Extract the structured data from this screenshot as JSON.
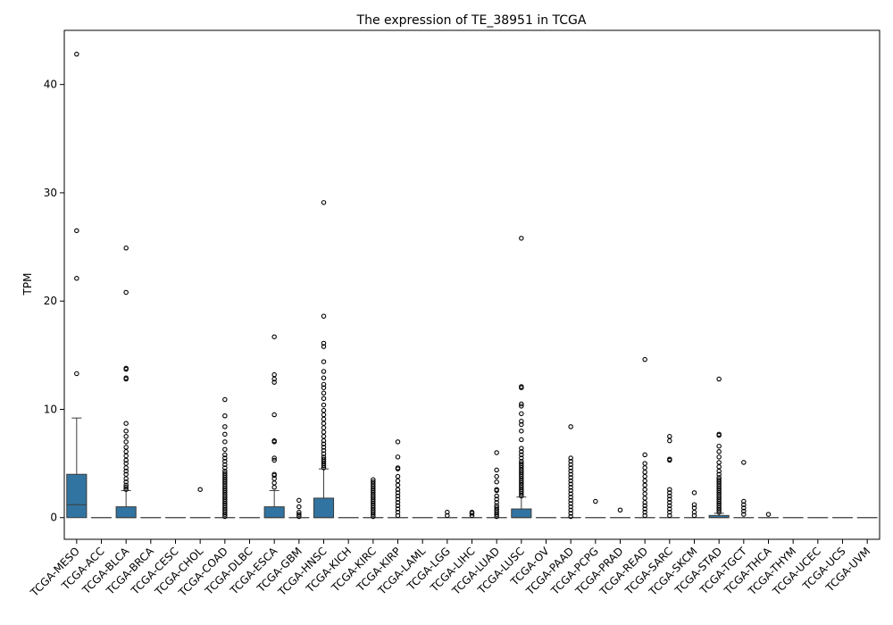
{
  "chart_data": {
    "type": "box",
    "title": "The expression of TE_38951 in TCGA",
    "xlabel": "",
    "ylabel": "TPM",
    "ylim": [
      -2.0,
      45.0
    ],
    "yticks": [
      0,
      10,
      20,
      30,
      40
    ],
    "grid": false,
    "box_color": "#3274a1",
    "categories": [
      "TCGA-MESO",
      "TCGA-ACC",
      "TCGA-BLCA",
      "TCGA-BRCA",
      "TCGA-CESC",
      "TCGA-CHOL",
      "TCGA-COAD",
      "TCGA-DLBC",
      "TCGA-ESCA",
      "TCGA-GBM",
      "TCGA-HNSC",
      "TCGA-KICH",
      "TCGA-KIRC",
      "TCGA-KIRP",
      "TCGA-LAML",
      "TCGA-LGG",
      "TCGA-LIHC",
      "TCGA-LUAD",
      "TCGA-LUSC",
      "TCGA-OV",
      "TCGA-PAAD",
      "TCGA-PCPG",
      "TCGA-PRAD",
      "TCGA-READ",
      "TCGA-SARC",
      "TCGA-SKCM",
      "TCGA-STAD",
      "TCGA-TGCT",
      "TCGA-THCA",
      "TCGA-THYM",
      "TCGA-UCEC",
      "TCGA-UCS",
      "TCGA-UVM"
    ],
    "boxes": [
      {
        "q1": 0,
        "median": 1.2,
        "q3": 4.0,
        "whislo": 0,
        "whishi": 9.2,
        "fliers": [
          13.3,
          22.1,
          26.5,
          42.8
        ]
      },
      {
        "q1": 0,
        "median": 0,
        "q3": 0,
        "whislo": 0,
        "whishi": 0,
        "fliers": []
      },
      {
        "q1": 0,
        "median": 0,
        "q3": 1.0,
        "whislo": 0,
        "whishi": 2.5,
        "fliers": [
          2.6,
          2.8,
          3.0,
          3.3,
          3.6,
          4.0,
          4.3,
          4.6,
          5.0,
          5.3,
          5.7,
          6.1,
          6.5,
          7.0,
          7.5,
          8.0,
          8.7,
          12.8,
          12.9,
          13.7,
          13.8,
          20.8,
          24.9
        ]
      },
      {
        "q1": 0,
        "median": 0,
        "q3": 0,
        "whislo": 0,
        "whishi": 0,
        "fliers": []
      },
      {
        "q1": 0,
        "median": 0,
        "q3": 0,
        "whislo": 0,
        "whishi": 0,
        "fliers": []
      },
      {
        "q1": 0,
        "median": 0,
        "q3": 0,
        "whislo": 0,
        "whishi": 0,
        "fliers": [
          2.6
        ]
      },
      {
        "q1": 0,
        "median": 0,
        "q3": 0,
        "whislo": 0,
        "whishi": 0,
        "fliers": [
          0.1,
          0.3,
          0.5,
          0.7,
          0.9,
          1.1,
          1.3,
          1.5,
          1.7,
          1.9,
          2.1,
          2.3,
          2.5,
          2.7,
          2.9,
          3.1,
          3.3,
          3.5,
          3.7,
          3.9,
          4.1,
          4.3,
          4.6,
          4.9,
          5.2,
          5.5,
          5.8,
          6.3,
          7.0,
          7.7,
          8.4,
          9.4,
          10.9
        ]
      },
      {
        "q1": 0,
        "median": 0,
        "q3": 0,
        "whislo": 0,
        "whishi": 0,
        "fliers": []
      },
      {
        "q1": 0,
        "median": 0,
        "q3": 1.0,
        "whislo": 0,
        "whishi": 2.5,
        "fliers": [
          2.8,
          3.2,
          3.6,
          3.9,
          4.0,
          5.3,
          5.5,
          7.0,
          7.1,
          9.5,
          12.5,
          12.8,
          13.2,
          16.7
        ]
      },
      {
        "q1": 0,
        "median": 0,
        "q3": 0,
        "whislo": 0,
        "whishi": 0,
        "fliers": [
          0.1,
          0.3,
          0.5,
          1.0,
          1.6
        ]
      },
      {
        "q1": 0,
        "median": 0,
        "q3": 1.8,
        "whislo": 0,
        "whishi": 4.5,
        "fliers": [
          4.6,
          4.8,
          5.0,
          5.2,
          5.4,
          5.6,
          5.9,
          6.2,
          6.5,
          6.8,
          7.1,
          7.5,
          7.9,
          8.3,
          8.7,
          9.1,
          9.5,
          9.9,
          10.4,
          11.0,
          11.5,
          12.0,
          12.3,
          12.9,
          13.5,
          14.4,
          15.8,
          16.1,
          18.6,
          29.1
        ]
      },
      {
        "q1": 0,
        "median": 0,
        "q3": 0,
        "whislo": 0,
        "whishi": 0,
        "fliers": []
      },
      {
        "q1": 0,
        "median": 0,
        "q3": 0,
        "whislo": 0,
        "whishi": 0,
        "fliers": [
          0.1,
          0.3,
          0.5,
          0.7,
          0.9,
          1.1,
          1.3,
          1.5,
          1.7,
          1.9,
          2.1,
          2.3,
          2.5,
          2.7,
          2.9,
          3.1,
          3.3,
          3.5
        ]
      },
      {
        "q1": 0,
        "median": 0,
        "q3": 0,
        "whislo": 0,
        "whishi": 0,
        "fliers": [
          0.2,
          0.5,
          0.8,
          1.1,
          1.4,
          1.7,
          2.0,
          2.3,
          2.6,
          3.0,
          3.4,
          3.8,
          4.5,
          4.6,
          5.6,
          7.0
        ]
      },
      {
        "q1": 0,
        "median": 0,
        "q3": 0,
        "whislo": 0,
        "whishi": 0,
        "fliers": []
      },
      {
        "q1": 0,
        "median": 0,
        "q3": 0,
        "whislo": 0,
        "whishi": 0,
        "fliers": [
          0.2,
          0.5
        ]
      },
      {
        "q1": 0,
        "median": 0,
        "q3": 0,
        "whislo": 0,
        "whishi": 0,
        "fliers": [
          0.2,
          0.4,
          0.5
        ]
      },
      {
        "q1": 0,
        "median": 0,
        "q3": 0,
        "whislo": 0,
        "whishi": 0,
        "fliers": [
          0.1,
          0.3,
          0.5,
          0.7,
          0.9,
          1.1,
          1.4,
          1.7,
          2.0,
          2.5,
          2.6,
          3.3,
          3.8,
          4.4,
          6.0
        ]
      },
      {
        "q1": 0,
        "median": 0,
        "q3": 0.8,
        "whislo": 0,
        "whishi": 1.9,
        "fliers": [
          2.0,
          2.2,
          2.4,
          2.6,
          2.8,
          3.0,
          3.2,
          3.4,
          3.6,
          3.8,
          4.0,
          4.2,
          4.4,
          4.6,
          4.8,
          5.0,
          5.2,
          5.5,
          5.8,
          6.1,
          6.4,
          7.2,
          8.0,
          8.6,
          8.9,
          9.6,
          10.3,
          10.5,
          12.0,
          12.1,
          25.8
        ]
      },
      {
        "q1": 0,
        "median": 0,
        "q3": 0,
        "whislo": 0,
        "whishi": 0,
        "fliers": []
      },
      {
        "q1": 0,
        "median": 0,
        "q3": 0,
        "whislo": 0,
        "whishi": 0,
        "fliers": [
          0.1,
          0.4,
          0.7,
          1.0,
          1.3,
          1.6,
          1.9,
          2.2,
          2.5,
          2.8,
          3.1,
          3.4,
          3.7,
          4.0,
          4.3,
          4.6,
          4.9,
          5.2,
          5.5,
          8.4
        ]
      },
      {
        "q1": 0,
        "median": 0,
        "q3": 0,
        "whislo": 0,
        "whishi": 0,
        "fliers": [
          1.5
        ]
      },
      {
        "q1": 0,
        "median": 0,
        "q3": 0,
        "whislo": 0,
        "whishi": 0,
        "fliers": [
          0.7
        ]
      },
      {
        "q1": 0,
        "median": 0,
        "q3": 0,
        "whislo": 0,
        "whishi": 0,
        "fliers": [
          0.2,
          0.5,
          0.8,
          1.1,
          1.4,
          1.8,
          2.2,
          2.6,
          3.0,
          3.4,
          3.8,
          4.2,
          4.6,
          5.0,
          5.8,
          14.6
        ]
      },
      {
        "q1": 0,
        "median": 0,
        "q3": 0,
        "whislo": 0,
        "whishi": 0,
        "fliers": [
          0.2,
          0.5,
          0.8,
          1.1,
          1.4,
          1.7,
          2.0,
          2.3,
          2.6,
          5.3,
          5.4,
          7.1,
          7.5
        ]
      },
      {
        "q1": 0,
        "median": 0,
        "q3": 0,
        "whislo": 0,
        "whishi": 0,
        "fliers": [
          0.2,
          0.5,
          0.9,
          1.2,
          2.3
        ]
      },
      {
        "q1": 0,
        "median": 0,
        "q3": 0.2,
        "whislo": 0,
        "whishi": 0.4,
        "fliers": [
          0.5,
          0.7,
          0.9,
          1.1,
          1.3,
          1.5,
          1.7,
          1.9,
          2.1,
          2.3,
          2.5,
          2.7,
          2.9,
          3.1,
          3.3,
          3.5,
          3.7,
          4.0,
          4.3,
          4.7,
          5.1,
          5.6,
          6.1,
          6.6,
          7.6,
          7.7,
          12.8
        ]
      },
      {
        "q1": 0,
        "median": 0,
        "q3": 0,
        "whislo": 0,
        "whishi": 0,
        "fliers": [
          0.3,
          0.6,
          0.9,
          1.2,
          1.5,
          5.1
        ]
      },
      {
        "q1": 0,
        "median": 0,
        "q3": 0,
        "whislo": 0,
        "whishi": 0,
        "fliers": [
          0.3
        ]
      },
      {
        "q1": 0,
        "median": 0,
        "q3": 0,
        "whislo": 0,
        "whishi": 0,
        "fliers": []
      },
      {
        "q1": 0,
        "median": 0,
        "q3": 0,
        "whislo": 0,
        "whishi": 0,
        "fliers": []
      },
      {
        "q1": 0,
        "median": 0,
        "q3": 0,
        "whislo": 0,
        "whishi": 0,
        "fliers": []
      },
      {
        "q1": 0,
        "median": 0,
        "q3": 0,
        "whislo": 0,
        "whishi": 0,
        "fliers": []
      }
    ]
  }
}
